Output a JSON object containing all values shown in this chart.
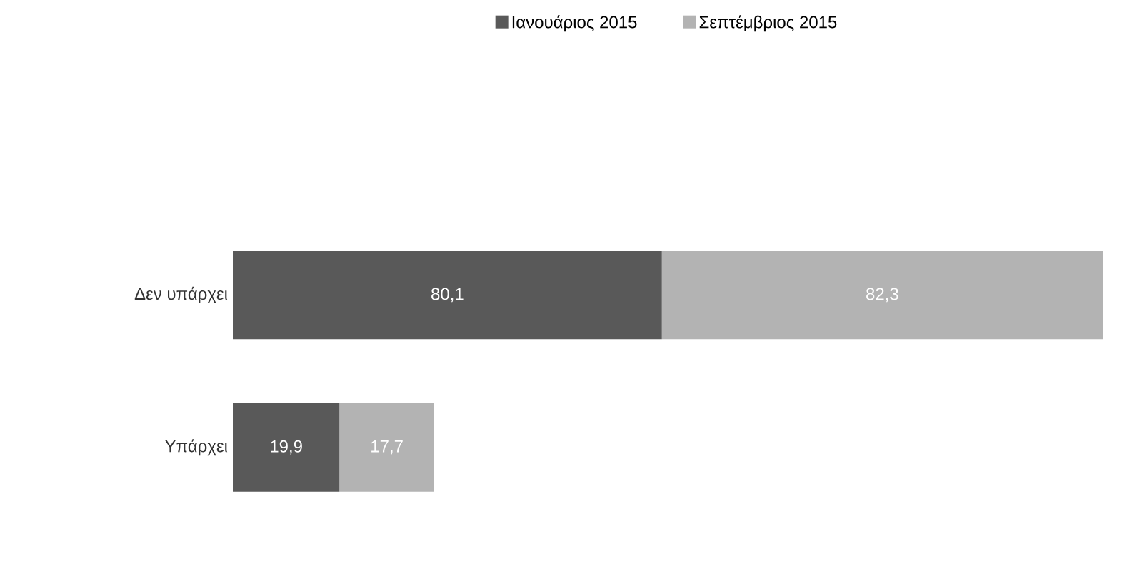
{
  "chart_data": {
    "type": "bar",
    "orientation": "horizontal",
    "stacked": true,
    "legend": "top",
    "categories": [
      "Δεν υπάρχει",
      "Υπάρχει"
    ],
    "series": [
      {
        "name": "Ιανουάριος 2015",
        "color": "#595959",
        "values": [
          80.1,
          19.9
        ],
        "value_labels": [
          "80,1",
          "19,9"
        ]
      },
      {
        "name": "Σεπτέμβριος 2015",
        "color": "#b3b3b3",
        "values": [
          82.3,
          17.7
        ],
        "value_labels": [
          "82,3",
          "17,7"
        ]
      }
    ]
  }
}
